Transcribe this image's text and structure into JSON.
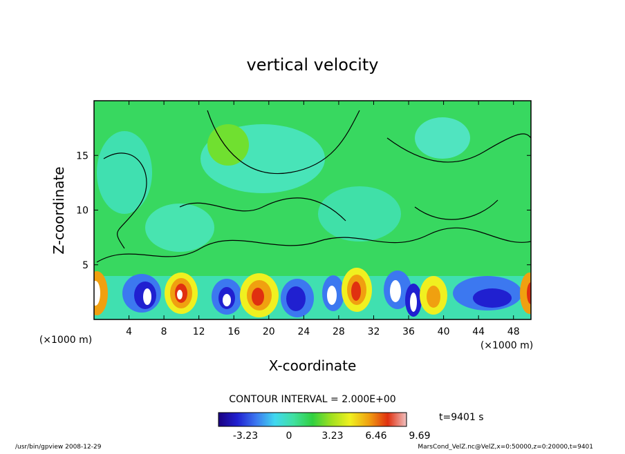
{
  "chart_data": {
    "type": "contour",
    "title": "vertical velocity",
    "xlabel": "X-coordinate",
    "ylabel": "Z-coordinate",
    "x_unit": "(×1000 m)",
    "xlim": [
      0,
      50
    ],
    "xticks": [
      4,
      8,
      12,
      16,
      20,
      24,
      28,
      32,
      36,
      40,
      44,
      48
    ],
    "ylim": [
      0,
      20
    ],
    "yticks": [
      5,
      10,
      15
    ],
    "contour_interval": "CONTOUR INTERVAL = 2.000E+00",
    "time_label": "t=9401 s",
    "footer_left": "/usr/bin/gpview  2008-12-29",
    "footer_right": "MarsCond_VelZ.nc@VelZ,x=0:50000,z=0:20000,t=9401",
    "colorbar": {
      "lim": [
        -5.23,
        8.72
      ],
      "ticks": [
        -3.23,
        0,
        3.23,
        6.46,
        9.69
      ],
      "colors": [
        "#1a0080",
        "#2020d0",
        "#3c78f0",
        "#40d8f0",
        "#40e0a0",
        "#30d040",
        "#a0e020",
        "#f0f020",
        "#f0a010",
        "#e03010",
        "#f0c0c0"
      ]
    }
  }
}
